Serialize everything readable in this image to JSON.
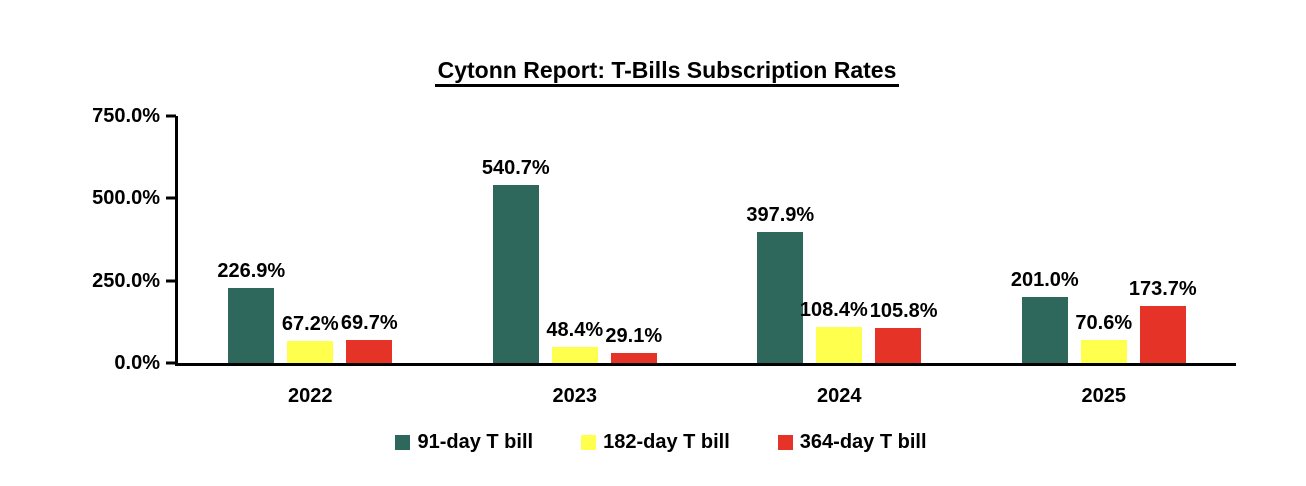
{
  "chart_data": {
    "type": "bar",
    "title": "Cytonn Report: T-Bills Subscription Rates",
    "categories": [
      "2022",
      "2023",
      "2024",
      "2025"
    ],
    "series": [
      {
        "name": "91-day T bill",
        "color": "#2E685C",
        "values": [
          226.9,
          540.7,
          397.9,
          201.0
        ],
        "data_labels": [
          "226.9%",
          "540.7%",
          "397.9%",
          "201.0%"
        ]
      },
      {
        "name": "182-day T bill",
        "color": "#FFFF4D",
        "values": [
          67.2,
          48.4,
          108.4,
          70.6
        ],
        "data_labels": [
          "67.2%",
          "48.4%",
          "108.4%",
          "70.6%"
        ]
      },
      {
        "name": "364-day T bill",
        "color": "#E63328",
        "values": [
          69.7,
          29.1,
          105.8,
          173.7
        ],
        "data_labels": [
          "69.7%",
          "29.1%",
          "105.8%",
          "173.7%"
        ]
      }
    ],
    "y_axis": {
      "min": 0,
      "max": 750,
      "ticks": [
        {
          "value": 0,
          "label": "0.0%"
        },
        {
          "value": 250,
          "label": "250.0%"
        },
        {
          "value": 500,
          "label": "500.0%"
        },
        {
          "value": 750,
          "label": "750.0%"
        }
      ]
    },
    "legend_position": "bottom",
    "grid": false,
    "axis_color": "#000000",
    "text_color": "#000000",
    "background_color": "#FFFFFF"
  }
}
